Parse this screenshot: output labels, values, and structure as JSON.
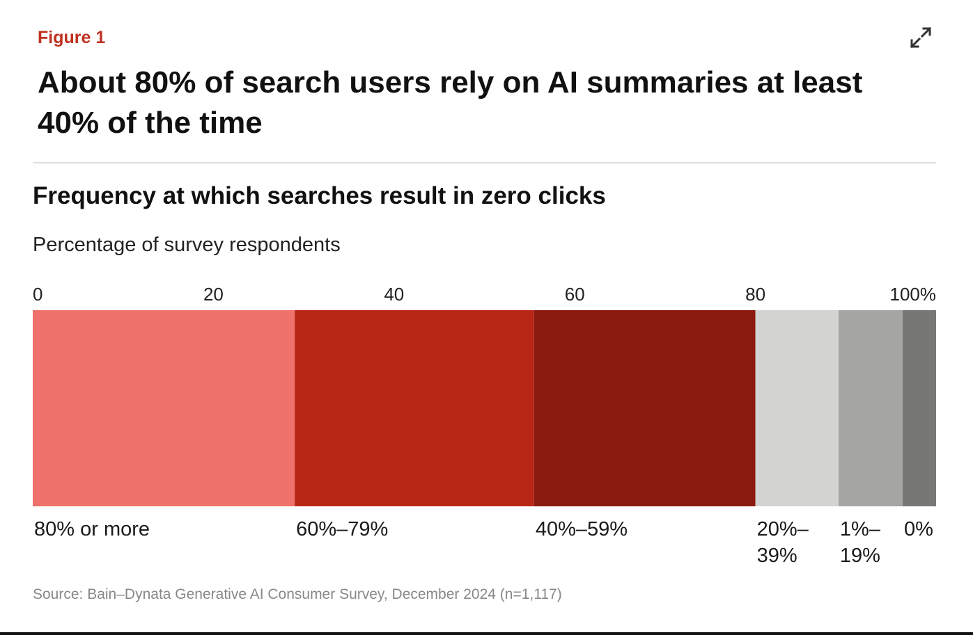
{
  "figure_label": "Figure 1",
  "headline": "About 80% of search users rely on AI summaries at least 40% of the time",
  "source": "Source: Bain–Dynata Generative AI Consumer Survey, December 2024 (n=1,117)",
  "icons": {
    "expand": "expand-icon"
  },
  "colors": {
    "accent": "#c0301f",
    "segments": [
      "#ee716b",
      "#b82716",
      "#8b1a10",
      "#d3d3d1",
      "#a5a5a3",
      "#777775"
    ]
  },
  "chart_data": {
    "type": "bar",
    "orientation": "horizontal-stacked-100",
    "title": "Frequency at which searches result in zero clicks",
    "subtitle": "Percentage of survey respondents",
    "xlim": [
      0,
      100
    ],
    "ticks": [
      "0",
      "20",
      "40",
      "60",
      "80",
      "100%"
    ],
    "series": [
      {
        "name": "80% or more",
        "value": 29
      },
      {
        "name": "60%–79%",
        "value": 26.5
      },
      {
        "name": "40%–59%",
        "value": 24.5
      },
      {
        "name": "20%–39%",
        "value": 9.2
      },
      {
        "name": "1%–19%",
        "value": 7.1
      },
      {
        "name": "0%",
        "value": 3.7
      }
    ],
    "grid": false,
    "legend": "below segments"
  }
}
